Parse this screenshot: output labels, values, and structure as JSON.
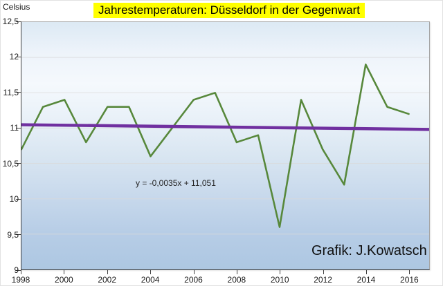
{
  "annotations": {
    "equation": "y = -0,0035x + 11,051",
    "credit": "Grafik: J.Kowatsch"
  },
  "colors": {
    "title_highlight": "#ffff00",
    "series_green": "#57883b",
    "trend_purple": "#7030a0",
    "gridline": "#d9d9d9"
  },
  "chart_data": {
    "type": "line",
    "title": "Jahrestemperaturen: Düsseldorf in der Gegenwart",
    "ylabel": "Celsius",
    "xlabel": "",
    "grid": "horizontal",
    "legend": "none",
    "ylim": [
      9,
      12.5
    ],
    "xlim": [
      1998,
      2016.95
    ],
    "x": [
      1998,
      1999,
      2000,
      2001,
      2002,
      2003,
      2004,
      2005,
      2006,
      2007,
      2008,
      2009,
      2010,
      2011,
      2012,
      2013,
      2014,
      2015,
      2016
    ],
    "series": [
      {
        "name": "Jahrestemperaturen",
        "color": "#57883b",
        "values": [
          10.7,
          11.3,
          11.4,
          10.8,
          11.3,
          11.3,
          10.6,
          11.0,
          11.4,
          11.5,
          10.8,
          10.9,
          9.6,
          11.4,
          10.7,
          10.2,
          11.9,
          11.3,
          11.2
        ]
      }
    ],
    "trendline": {
      "equation_label": "y = -0,0035x + 11,051",
      "slope": -0.0035,
      "intercept": 11.051,
      "x_index_of_first_year": 1,
      "color": "#7030a0"
    },
    "y_ticks": [
      {
        "value": 12.5,
        "label": "12,5"
      },
      {
        "value": 12,
        "label": "12"
      },
      {
        "value": 11.5,
        "label": "11,5"
      },
      {
        "value": 11,
        "label": "11"
      },
      {
        "value": 10.5,
        "label": "10,5"
      },
      {
        "value": 10,
        "label": "10"
      },
      {
        "value": 9.5,
        "label": "9,5"
      },
      {
        "value": 9,
        "label": "9"
      }
    ],
    "x_ticks": [
      {
        "value": 1998,
        "label": "1998"
      },
      {
        "value": 2000,
        "label": "2000"
      },
      {
        "value": 2002,
        "label": "2002"
      },
      {
        "value": 2004,
        "label": "2004"
      },
      {
        "value": 2006,
        "label": "2006"
      },
      {
        "value": 2008,
        "label": "2008"
      },
      {
        "value": 2010,
        "label": "2010"
      },
      {
        "value": 2012,
        "label": "2012"
      },
      {
        "value": 2014,
        "label": "2014"
      },
      {
        "value": 2016,
        "label": "2016"
      }
    ]
  }
}
